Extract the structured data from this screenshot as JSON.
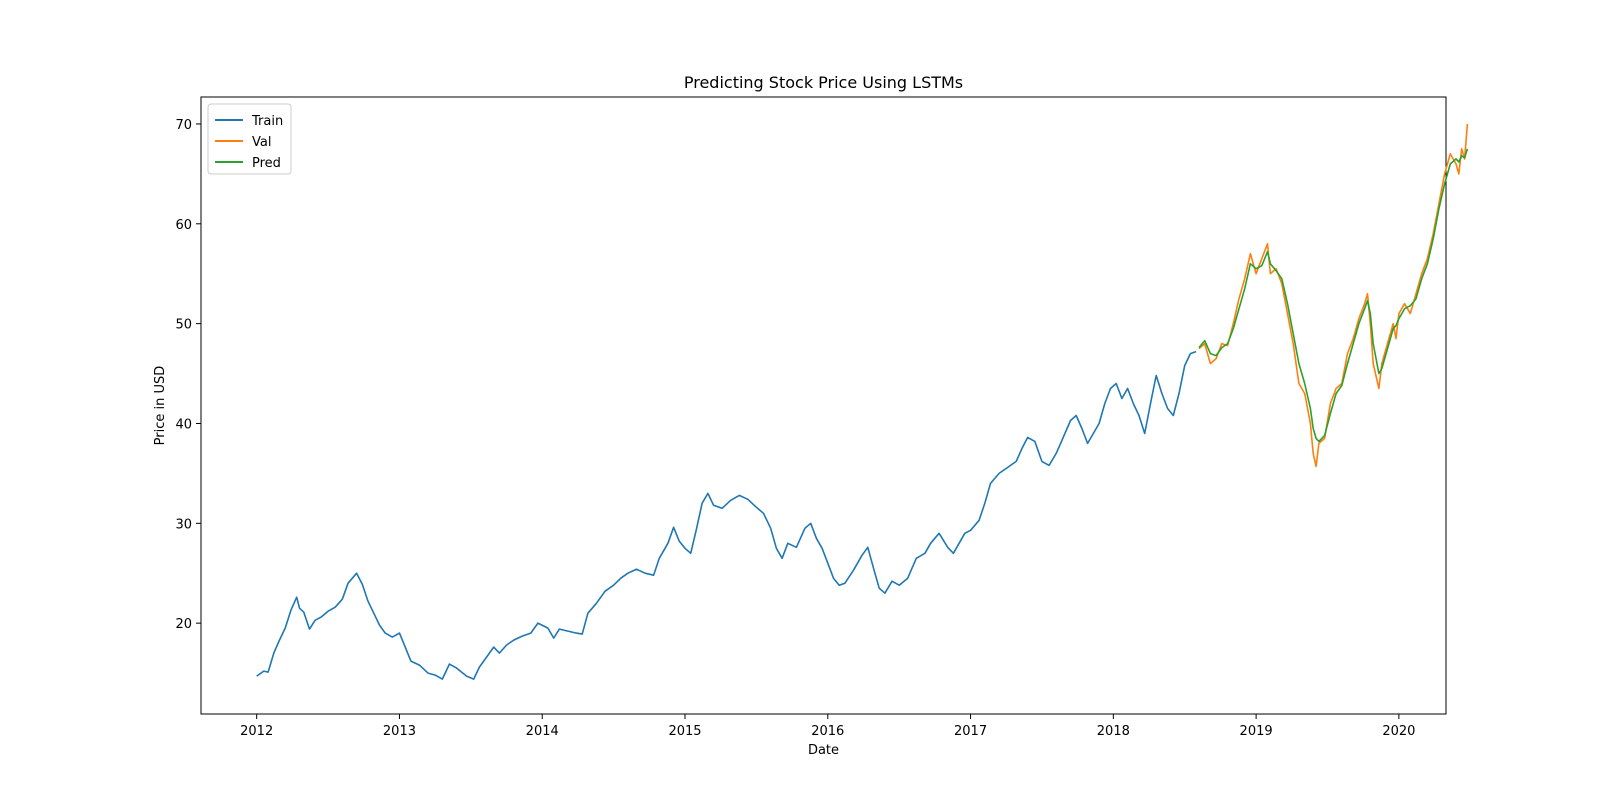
{
  "chart_data": {
    "type": "line",
    "title": "Predicting Stock Price Using LSTMs",
    "xlabel": "Date",
    "ylabel": "Price in USD",
    "xlim": [
      2011.61,
      2020.33
    ],
    "ylim": [
      10.9,
      72.7
    ],
    "x_ticks": [
      2012,
      2013,
      2014,
      2015,
      2016,
      2017,
      2018,
      2019,
      2020
    ],
    "x_tick_labels": [
      "2012",
      "2013",
      "2014",
      "2015",
      "2016",
      "2017",
      "2018",
      "2019",
      "2020"
    ],
    "y_ticks": [
      20,
      30,
      40,
      50,
      60,
      70
    ],
    "y_tick_labels": [
      "20",
      "30",
      "40",
      "50",
      "60",
      "70"
    ],
    "grid": false,
    "legend_position": "top-left",
    "series": [
      {
        "name": "Train",
        "color": "#1f77b4",
        "points": [
          [
            2012.0,
            14.7
          ],
          [
            2012.05,
            15.2
          ],
          [
            2012.08,
            15.1
          ],
          [
            2012.12,
            17.0
          ],
          [
            2012.16,
            18.3
          ],
          [
            2012.2,
            19.5
          ],
          [
            2012.24,
            21.3
          ],
          [
            2012.28,
            22.6
          ],
          [
            2012.3,
            21.5
          ],
          [
            2012.33,
            21.1
          ],
          [
            2012.37,
            19.4
          ],
          [
            2012.41,
            20.3
          ],
          [
            2012.45,
            20.6
          ],
          [
            2012.5,
            21.2
          ],
          [
            2012.55,
            21.6
          ],
          [
            2012.6,
            22.4
          ],
          [
            2012.64,
            24.0
          ],
          [
            2012.7,
            25.0
          ],
          [
            2012.74,
            23.9
          ],
          [
            2012.78,
            22.2
          ],
          [
            2012.82,
            21.0
          ],
          [
            2012.86,
            19.8
          ],
          [
            2012.9,
            19.0
          ],
          [
            2012.95,
            18.6
          ],
          [
            2013.0,
            19.0
          ],
          [
            2013.04,
            17.6
          ],
          [
            2013.08,
            16.2
          ],
          [
            2013.14,
            15.8
          ],
          [
            2013.2,
            15.0
          ],
          [
            2013.25,
            14.8
          ],
          [
            2013.3,
            14.4
          ],
          [
            2013.35,
            15.9
          ],
          [
            2013.4,
            15.5
          ],
          [
            2013.47,
            14.7
          ],
          [
            2013.52,
            14.4
          ],
          [
            2013.56,
            15.6
          ],
          [
            2013.62,
            16.8
          ],
          [
            2013.66,
            17.6
          ],
          [
            2013.7,
            17.0
          ],
          [
            2013.75,
            17.8
          ],
          [
            2013.8,
            18.3
          ],
          [
            2013.86,
            18.7
          ],
          [
            2013.92,
            19.0
          ],
          [
            2013.97,
            20.0
          ],
          [
            2014.04,
            19.5
          ],
          [
            2014.08,
            18.5
          ],
          [
            2014.12,
            19.4
          ],
          [
            2014.18,
            19.2
          ],
          [
            2014.24,
            19.0
          ],
          [
            2014.28,
            18.9
          ],
          [
            2014.32,
            21.0
          ],
          [
            2014.38,
            22.0
          ],
          [
            2014.44,
            23.2
          ],
          [
            2014.5,
            23.8
          ],
          [
            2014.55,
            24.5
          ],
          [
            2014.6,
            25.0
          ],
          [
            2014.66,
            25.4
          ],
          [
            2014.72,
            25.0
          ],
          [
            2014.78,
            24.8
          ],
          [
            2014.82,
            26.5
          ],
          [
            2014.88,
            28.0
          ],
          [
            2014.92,
            29.6
          ],
          [
            2014.96,
            28.2
          ],
          [
            2015.0,
            27.5
          ],
          [
            2015.04,
            27.0
          ],
          [
            2015.08,
            29.4
          ],
          [
            2015.12,
            32.0
          ],
          [
            2015.16,
            33.0
          ],
          [
            2015.2,
            31.8
          ],
          [
            2015.26,
            31.5
          ],
          [
            2015.32,
            32.3
          ],
          [
            2015.38,
            32.8
          ],
          [
            2015.44,
            32.4
          ],
          [
            2015.5,
            31.6
          ],
          [
            2015.55,
            31.0
          ],
          [
            2015.6,
            29.5
          ],
          [
            2015.64,
            27.5
          ],
          [
            2015.68,
            26.5
          ],
          [
            2015.72,
            28.0
          ],
          [
            2015.78,
            27.6
          ],
          [
            2015.84,
            29.5
          ],
          [
            2015.88,
            30.0
          ],
          [
            2015.92,
            28.5
          ],
          [
            2015.96,
            27.5
          ],
          [
            2016.0,
            26.0
          ],
          [
            2016.04,
            24.5
          ],
          [
            2016.08,
            23.8
          ],
          [
            2016.12,
            24.0
          ],
          [
            2016.18,
            25.3
          ],
          [
            2016.24,
            26.8
          ],
          [
            2016.28,
            27.6
          ],
          [
            2016.32,
            25.5
          ],
          [
            2016.36,
            23.5
          ],
          [
            2016.4,
            23.0
          ],
          [
            2016.45,
            24.2
          ],
          [
            2016.5,
            23.8
          ],
          [
            2016.56,
            24.5
          ],
          [
            2016.62,
            26.5
          ],
          [
            2016.68,
            27.0
          ],
          [
            2016.72,
            28.0
          ],
          [
            2016.78,
            29.0
          ],
          [
            2016.84,
            27.6
          ],
          [
            2016.88,
            27.0
          ],
          [
            2016.92,
            28.0
          ],
          [
            2016.96,
            29.0
          ],
          [
            2017.0,
            29.3
          ],
          [
            2017.06,
            30.3
          ],
          [
            2017.1,
            32.0
          ],
          [
            2017.14,
            34.0
          ],
          [
            2017.2,
            35.0
          ],
          [
            2017.26,
            35.6
          ],
          [
            2017.32,
            36.2
          ],
          [
            2017.36,
            37.5
          ],
          [
            2017.4,
            38.6
          ],
          [
            2017.45,
            38.2
          ],
          [
            2017.5,
            36.2
          ],
          [
            2017.55,
            35.8
          ],
          [
            2017.6,
            37.0
          ],
          [
            2017.64,
            38.3
          ],
          [
            2017.7,
            40.3
          ],
          [
            2017.74,
            40.8
          ],
          [
            2017.78,
            39.5
          ],
          [
            2017.82,
            38.0
          ],
          [
            2017.86,
            39.0
          ],
          [
            2017.9,
            40.0
          ],
          [
            2017.94,
            42.0
          ],
          [
            2017.98,
            43.5
          ],
          [
            2018.02,
            44.0
          ],
          [
            2018.06,
            42.5
          ],
          [
            2018.1,
            43.5
          ],
          [
            2018.14,
            42.0
          ],
          [
            2018.18,
            40.8
          ],
          [
            2018.22,
            39.0
          ],
          [
            2018.26,
            42.0
          ],
          [
            2018.3,
            44.8
          ],
          [
            2018.34,
            43.0
          ],
          [
            2018.38,
            41.5
          ],
          [
            2018.42,
            40.8
          ],
          [
            2018.46,
            43.0
          ],
          [
            2018.5,
            45.8
          ],
          [
            2018.54,
            47.0
          ],
          [
            2018.58,
            47.2
          ]
        ]
      },
      {
        "name": "Val",
        "color": "#ff7f0e",
        "points": [
          [
            2018.6,
            47.5
          ],
          [
            2018.64,
            48.0
          ],
          [
            2018.68,
            46.0
          ],
          [
            2018.72,
            46.5
          ],
          [
            2018.76,
            48.0
          ],
          [
            2018.8,
            47.8
          ],
          [
            2018.84,
            50.0
          ],
          [
            2018.88,
            52.5
          ],
          [
            2018.92,
            54.5
          ],
          [
            2018.96,
            57.0
          ],
          [
            2019.0,
            55.0
          ],
          [
            2019.04,
            56.5
          ],
          [
            2019.08,
            58.0
          ],
          [
            2019.1,
            55.0
          ],
          [
            2019.14,
            55.5
          ],
          [
            2019.18,
            54.0
          ],
          [
            2019.22,
            51.0
          ],
          [
            2019.26,
            48.0
          ],
          [
            2019.3,
            44.0
          ],
          [
            2019.34,
            43.0
          ],
          [
            2019.38,
            40.0
          ],
          [
            2019.4,
            37.0
          ],
          [
            2019.42,
            35.7
          ],
          [
            2019.44,
            38.0
          ],
          [
            2019.48,
            38.5
          ],
          [
            2019.52,
            42.0
          ],
          [
            2019.56,
            43.5
          ],
          [
            2019.6,
            44.0
          ],
          [
            2019.64,
            47.0
          ],
          [
            2019.68,
            48.5
          ],
          [
            2019.72,
            50.5
          ],
          [
            2019.76,
            52.0
          ],
          [
            2019.78,
            53.0
          ],
          [
            2019.8,
            50.0
          ],
          [
            2019.82,
            46.0
          ],
          [
            2019.86,
            43.5
          ],
          [
            2019.88,
            46.0
          ],
          [
            2019.92,
            48.0
          ],
          [
            2019.96,
            50.0
          ],
          [
            2019.98,
            48.5
          ],
          [
            2020.0,
            51.0
          ],
          [
            2020.04,
            52.0
          ],
          [
            2020.08,
            51.0
          ],
          [
            2020.12,
            53.0
          ],
          [
            2020.16,
            55.0
          ],
          [
            2020.2,
            56.5
          ],
          [
            2020.24,
            59.0
          ],
          [
            2020.28,
            62.0
          ],
          [
            2020.32,
            65.0
          ],
          [
            2020.36,
            67.0
          ],
          [
            2020.4,
            66.0
          ],
          [
            2020.42,
            65.0
          ],
          [
            2020.44,
            67.5
          ],
          [
            2020.46,
            66.5
          ],
          [
            2020.48,
            70.0
          ]
        ]
      },
      {
        "name": "Pred",
        "color": "#2ca02c",
        "points": [
          [
            2018.6,
            47.6
          ],
          [
            2018.64,
            48.3
          ],
          [
            2018.68,
            47.0
          ],
          [
            2018.72,
            46.8
          ],
          [
            2018.76,
            47.6
          ],
          [
            2018.8,
            48.0
          ],
          [
            2018.84,
            49.5
          ],
          [
            2018.88,
            51.5
          ],
          [
            2018.92,
            53.5
          ],
          [
            2018.96,
            56.0
          ],
          [
            2019.0,
            55.5
          ],
          [
            2019.04,
            55.8
          ],
          [
            2019.08,
            57.2
          ],
          [
            2019.1,
            56.0
          ],
          [
            2019.14,
            55.3
          ],
          [
            2019.18,
            54.5
          ],
          [
            2019.22,
            52.0
          ],
          [
            2019.26,
            49.0
          ],
          [
            2019.3,
            46.0
          ],
          [
            2019.34,
            44.0
          ],
          [
            2019.38,
            41.5
          ],
          [
            2019.4,
            39.5
          ],
          [
            2019.42,
            38.5
          ],
          [
            2019.44,
            38.2
          ],
          [
            2019.48,
            38.8
          ],
          [
            2019.52,
            41.0
          ],
          [
            2019.56,
            43.0
          ],
          [
            2019.6,
            43.8
          ],
          [
            2019.64,
            46.0
          ],
          [
            2019.68,
            48.0
          ],
          [
            2019.72,
            50.0
          ],
          [
            2019.76,
            51.5
          ],
          [
            2019.78,
            52.3
          ],
          [
            2019.8,
            51.0
          ],
          [
            2019.82,
            48.0
          ],
          [
            2019.86,
            45.0
          ],
          [
            2019.88,
            45.5
          ],
          [
            2019.92,
            47.5
          ],
          [
            2019.96,
            49.5
          ],
          [
            2019.98,
            49.8
          ],
          [
            2020.0,
            50.5
          ],
          [
            2020.04,
            51.5
          ],
          [
            2020.08,
            51.8
          ],
          [
            2020.12,
            52.5
          ],
          [
            2020.16,
            54.5
          ],
          [
            2020.2,
            56.0
          ],
          [
            2020.24,
            58.5
          ],
          [
            2020.28,
            61.5
          ],
          [
            2020.32,
            64.0
          ],
          [
            2020.36,
            66.0
          ],
          [
            2020.4,
            66.5
          ],
          [
            2020.42,
            66.2
          ],
          [
            2020.44,
            66.8
          ],
          [
            2020.46,
            66.6
          ],
          [
            2020.48,
            67.5
          ]
        ]
      }
    ]
  }
}
